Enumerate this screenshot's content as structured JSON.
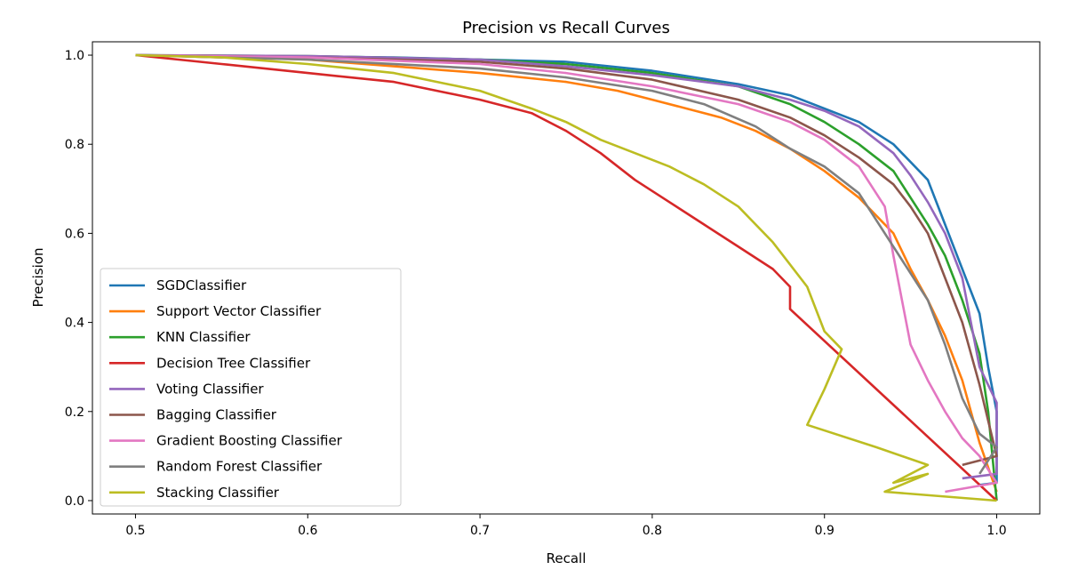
{
  "chart_data": {
    "type": "line",
    "title": "Precision vs Recall Curves",
    "xlabel": "Recall",
    "ylabel": "Precision",
    "xlim": [
      0.475,
      1.025
    ],
    "ylim": [
      -0.03,
      1.03
    ],
    "xticks": [
      0.5,
      0.6,
      0.7,
      0.8,
      0.9,
      1.0
    ],
    "xtick_labels": [
      "0.5",
      "0.6",
      "0.7",
      "0.8",
      "0.9",
      "1.0"
    ],
    "yticks": [
      0.0,
      0.2,
      0.4,
      0.6,
      0.8,
      1.0
    ],
    "ytick_labels": [
      "0.0",
      "0.2",
      "0.4",
      "0.6",
      "0.8",
      "1.0"
    ],
    "grid": false,
    "legend_position": "lower-left",
    "series": [
      {
        "name": "SGDClassifier",
        "color": "#1f77b4",
        "x": [
          0.5,
          0.65,
          0.75,
          0.8,
          0.85,
          0.88,
          0.9,
          0.92,
          0.94,
          0.96,
          0.97,
          0.98,
          0.99,
          0.995,
          1.0,
          1.0,
          0.99
        ],
        "y": [
          1.0,
          0.995,
          0.985,
          0.965,
          0.935,
          0.91,
          0.88,
          0.85,
          0.8,
          0.72,
          0.62,
          0.52,
          0.42,
          0.3,
          0.2,
          0.04,
          0.035
        ]
      },
      {
        "name": "Support Vector Classifier",
        "color": "#ff7f0e",
        "x": [
          0.5,
          0.6,
          0.7,
          0.75,
          0.78,
          0.8,
          0.82,
          0.84,
          0.86,
          0.88,
          0.9,
          0.92,
          0.94,
          0.95,
          0.96,
          0.97,
          0.98,
          0.99,
          1.0
        ],
        "y": [
          1.0,
          0.99,
          0.96,
          0.94,
          0.92,
          0.9,
          0.88,
          0.86,
          0.83,
          0.79,
          0.74,
          0.68,
          0.6,
          0.52,
          0.45,
          0.37,
          0.27,
          0.13,
          0.02
        ]
      },
      {
        "name": "KNN Classifier",
        "color": "#2ca02c",
        "x": [
          0.5,
          0.6,
          0.7,
          0.75,
          0.8,
          0.85,
          0.88,
          0.9,
          0.92,
          0.94,
          0.95,
          0.96,
          0.97,
          0.98,
          0.99,
          0.995,
          1.0
        ],
        "y": [
          1.0,
          0.998,
          0.99,
          0.98,
          0.96,
          0.93,
          0.89,
          0.85,
          0.8,
          0.74,
          0.68,
          0.62,
          0.55,
          0.45,
          0.33,
          0.2,
          0.0
        ]
      },
      {
        "name": "Decision Tree Classifier",
        "color": "#d62728",
        "x": [
          0.5,
          0.55,
          0.6,
          0.65,
          0.7,
          0.73,
          0.75,
          0.77,
          0.79,
          0.81,
          0.83,
          0.85,
          0.87,
          0.88,
          0.88,
          1.0
        ],
        "y": [
          1.0,
          0.98,
          0.96,
          0.94,
          0.9,
          0.87,
          0.83,
          0.78,
          0.72,
          0.67,
          0.62,
          0.57,
          0.52,
          0.48,
          0.43,
          0.0
        ]
      },
      {
        "name": "Voting Classifier",
        "color": "#9467bd",
        "x": [
          0.5,
          0.6,
          0.7,
          0.75,
          0.8,
          0.85,
          0.88,
          0.9,
          0.92,
          0.94,
          0.95,
          0.96,
          0.97,
          0.98,
          0.985,
          0.99,
          1.0,
          1.0,
          0.98
        ],
        "y": [
          1.0,
          0.998,
          0.99,
          0.975,
          0.955,
          0.93,
          0.9,
          0.875,
          0.84,
          0.78,
          0.73,
          0.67,
          0.6,
          0.5,
          0.4,
          0.3,
          0.22,
          0.06,
          0.05
        ]
      },
      {
        "name": "Bagging Classifier",
        "color": "#8c564b",
        "x": [
          0.5,
          0.6,
          0.7,
          0.75,
          0.8,
          0.85,
          0.88,
          0.9,
          0.92,
          0.94,
          0.95,
          0.96,
          0.97,
          0.98,
          0.99,
          1.0,
          0.98
        ],
        "y": [
          1.0,
          0.995,
          0.985,
          0.97,
          0.945,
          0.9,
          0.86,
          0.82,
          0.77,
          0.71,
          0.66,
          0.6,
          0.5,
          0.4,
          0.26,
          0.1,
          0.08
        ]
      },
      {
        "name": "Gradient Boosting Classifier",
        "color": "#e377c2",
        "x": [
          0.5,
          0.6,
          0.7,
          0.75,
          0.8,
          0.85,
          0.88,
          0.9,
          0.92,
          0.935,
          0.94,
          0.945,
          0.95,
          0.96,
          0.97,
          0.98,
          0.99,
          1.0,
          0.97
        ],
        "y": [
          1.0,
          0.995,
          0.98,
          0.96,
          0.93,
          0.89,
          0.85,
          0.81,
          0.75,
          0.66,
          0.55,
          0.45,
          0.35,
          0.27,
          0.2,
          0.14,
          0.1,
          0.04,
          0.02
        ]
      },
      {
        "name": "Random Forest Classifier",
        "color": "#7f7f7f",
        "x": [
          0.5,
          0.6,
          0.7,
          0.75,
          0.8,
          0.83,
          0.86,
          0.88,
          0.9,
          0.92,
          0.94,
          0.96,
          0.97,
          0.98,
          0.99,
          1.0,
          0.99
        ],
        "y": [
          1.0,
          0.99,
          0.97,
          0.95,
          0.92,
          0.89,
          0.84,
          0.79,
          0.75,
          0.69,
          0.57,
          0.45,
          0.35,
          0.23,
          0.15,
          0.12,
          0.06
        ]
      },
      {
        "name": "Stacking Classifier",
        "color": "#bcbd22",
        "x": [
          0.5,
          0.55,
          0.6,
          0.65,
          0.7,
          0.73,
          0.75,
          0.77,
          0.79,
          0.81,
          0.83,
          0.85,
          0.87,
          0.89,
          0.9,
          0.91,
          0.9,
          0.89,
          0.93,
          0.96,
          0.94,
          0.96,
          0.935,
          1.0
        ],
        "y": [
          1.0,
          0.995,
          0.98,
          0.96,
          0.92,
          0.88,
          0.85,
          0.81,
          0.78,
          0.75,
          0.71,
          0.66,
          0.58,
          0.48,
          0.38,
          0.34,
          0.25,
          0.17,
          0.12,
          0.08,
          0.04,
          0.06,
          0.02,
          0.0
        ]
      }
    ]
  }
}
